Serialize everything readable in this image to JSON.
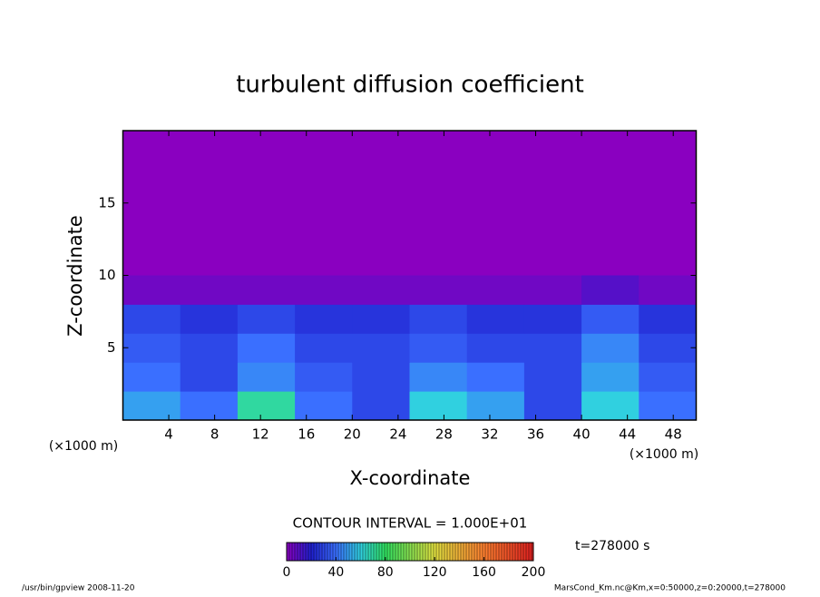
{
  "chart_data": {
    "type": "heatmap",
    "title": "turbulent diffusion coefficient",
    "x_label": "X-coordinate",
    "y_label": "Z-coordinate",
    "x_unit": "(×1000 m)",
    "y_unit": "(×1000 m)",
    "xlim": [
      0,
      50
    ],
    "ylim": [
      0,
      20
    ],
    "xticks": [
      4,
      8,
      12,
      16,
      20,
      24,
      28,
      32,
      36,
      40,
      44,
      48
    ],
    "yticks": [
      5,
      10,
      15
    ],
    "x_edges": [
      0,
      5,
      10,
      15,
      20,
      25,
      30,
      35,
      40,
      45,
      50
    ],
    "z_edges": [
      0,
      2,
      4,
      6,
      8,
      10
    ],
    "values": [
      [
        50,
        40,
        70,
        40,
        30,
        60,
        50,
        30,
        60,
        40
      ],
      [
        40,
        30,
        45,
        35,
        30,
        45,
        40,
        30,
        50,
        35
      ],
      [
        35,
        30,
        40,
        30,
        30,
        35,
        30,
        30,
        45,
        30
      ],
      [
        30,
        25,
        30,
        25,
        25,
        30,
        25,
        25,
        35,
        25
      ],
      [
        5,
        5,
        5,
        5,
        5,
        5,
        5,
        5,
        10,
        5
      ]
    ],
    "colormap": [
      {
        "value": 0,
        "color": "#8a00c0"
      },
      {
        "value": 20,
        "color": "#2020d0"
      },
      {
        "value": 40,
        "color": "#3a6fff"
      },
      {
        "value": 60,
        "color": "#30d0e0"
      },
      {
        "value": 80,
        "color": "#30e060"
      },
      {
        "value": 120,
        "color": "#e0e040"
      },
      {
        "value": 160,
        "color": "#ff8030"
      },
      {
        "value": 200,
        "color": "#e02020"
      }
    ],
    "clim": [
      0,
      200
    ],
    "cticks": [
      0,
      40,
      80,
      120,
      160,
      200
    ],
    "contour_note": "CONTOUR INTERVAL = 1.000E+01",
    "time_label": "t=278000 s",
    "footer_left": "/usr/bin/gpview  2008-11-20",
    "footer_right": "MarsCond_Km.nc@Km,x=0:50000,z=0:20000,t=278000"
  }
}
